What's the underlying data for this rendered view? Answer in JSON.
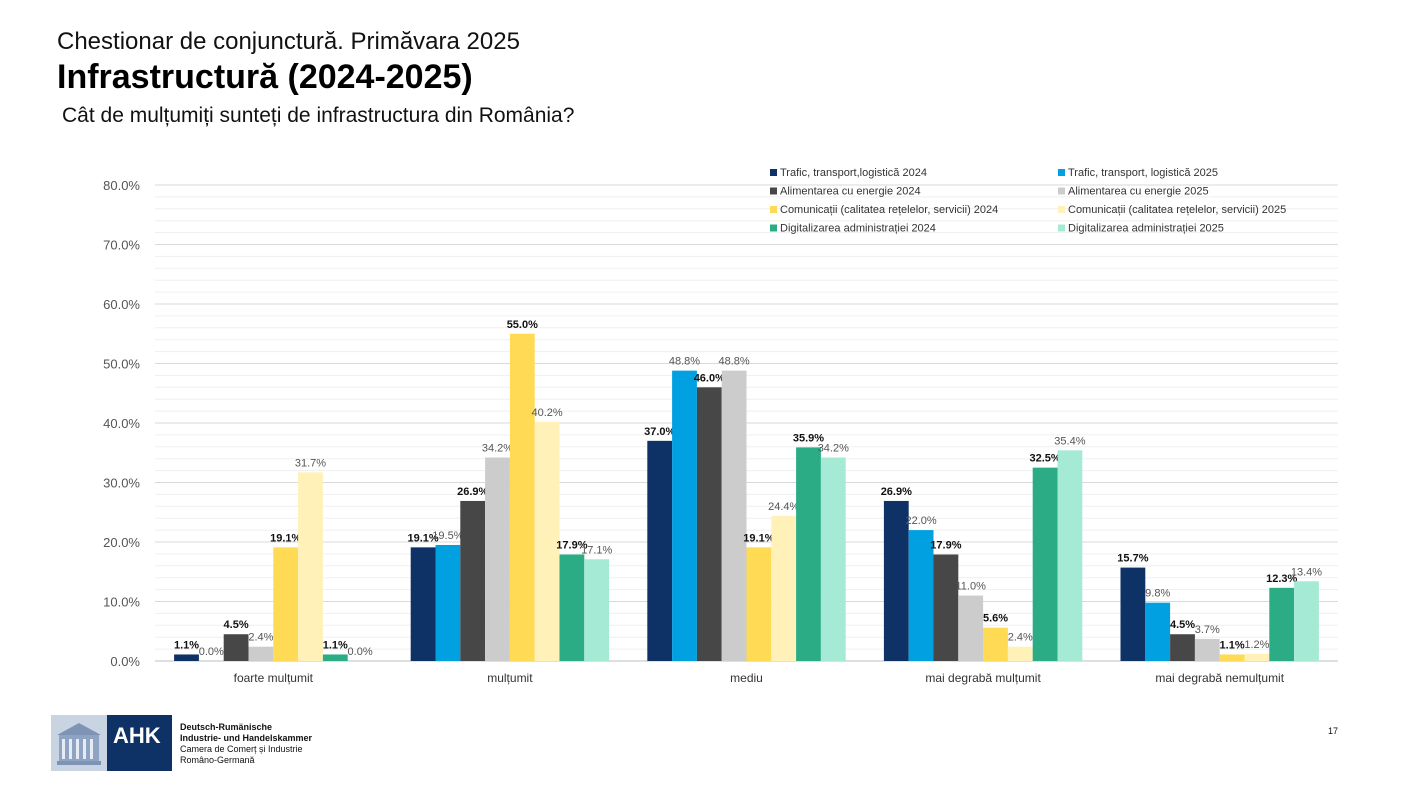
{
  "header": {
    "kicker": "Chestionar de conjunctură. Primăvara 2025",
    "title": "Infrastructură (2024-2025)",
    "question": "Cât de mulțumiți sunteți de infrastructura din România?"
  },
  "chart_data": {
    "type": "bar",
    "categories": [
      "foarte mulțumit",
      "mulțumit",
      "mediu",
      "mai degrabă mulțumit",
      "mai degrabă nemulțumit"
    ],
    "ylim": [
      0,
      80
    ],
    "yticks": [
      "0.0%",
      "10.0%",
      "20.0%",
      "30.0%",
      "40.0%",
      "50.0%",
      "60.0%",
      "70.0%",
      "80.0%"
    ],
    "grid": true,
    "legend_position": "top-right",
    "series": [
      {
        "name": "Trafic, transport,logistică 2024",
        "color": "#0f3266",
        "values": [
          1.1,
          19.1,
          37.0,
          26.9,
          15.7
        ],
        "labels": [
          "1.1%",
          "19.1%",
          "37.0%",
          "26.9%",
          "15.7%"
        ]
      },
      {
        "name": "Trafic, transport, logistică 2025",
        "color": "#00a0e1",
        "values": [
          0.0,
          19.5,
          48.8,
          22.0,
          9.8
        ],
        "labels": [
          "0.0%",
          "19.5%",
          "48.8%",
          "22.0%",
          "9.8%"
        ]
      },
      {
        "name": "Alimentarea cu energie 2024",
        "color": "#474747",
        "values": [
          4.5,
          26.9,
          46.0,
          17.9,
          4.5
        ],
        "labels": [
          "4.5%",
          "26.9%",
          "46.0%",
          "17.9%",
          "4.5%"
        ]
      },
      {
        "name": "Alimentarea cu energie 2025",
        "color": "#cccccc",
        "values": [
          2.4,
          34.2,
          48.8,
          11.0,
          3.7
        ],
        "labels": [
          "2.4%",
          "34.2%",
          "48.8%",
          "11.0%",
          "3.7%"
        ]
      },
      {
        "name": "Comunicații (calitatea rețelelor, servicii) 2024",
        "color": "#ffda55",
        "values": [
          19.1,
          55.0,
          19.1,
          5.6,
          1.1
        ],
        "labels": [
          "19.1%",
          "55.0%",
          "19.1%",
          "5.6%",
          "1.1%"
        ]
      },
      {
        "name": "Comunicații (calitatea rețelelor, servicii) 2025",
        "color": "#fff1b8",
        "values": [
          31.7,
          40.2,
          24.4,
          2.4,
          1.2
        ],
        "labels": [
          "31.7%",
          "40.2%",
          "24.4%",
          "2.4%",
          "1.2%"
        ]
      },
      {
        "name": "Digitalizarea administrației 2024",
        "color": "#2bac84",
        "values": [
          1.1,
          17.9,
          35.9,
          32.5,
          12.3
        ],
        "labels": [
          "1.1%",
          "17.9%",
          "35.9%",
          "32.5%",
          "12.3%"
        ]
      },
      {
        "name": "Digitalizarea administrației 2025",
        "color": "#a5ead4",
        "values": [
          0.0,
          17.1,
          34.2,
          35.4,
          13.4
        ],
        "labels": [
          "0.0%",
          "17.1%",
          "34.2%",
          "35.4%",
          "13.4%"
        ]
      }
    ]
  },
  "footer": {
    "logo_abbr": "AHK",
    "org_lines": [
      "Deutsch-Rumänische",
      "Industrie- und Handelskammer",
      "Camera de Comerț și Industrie",
      "Româno-Germană"
    ],
    "page_number": "17"
  }
}
